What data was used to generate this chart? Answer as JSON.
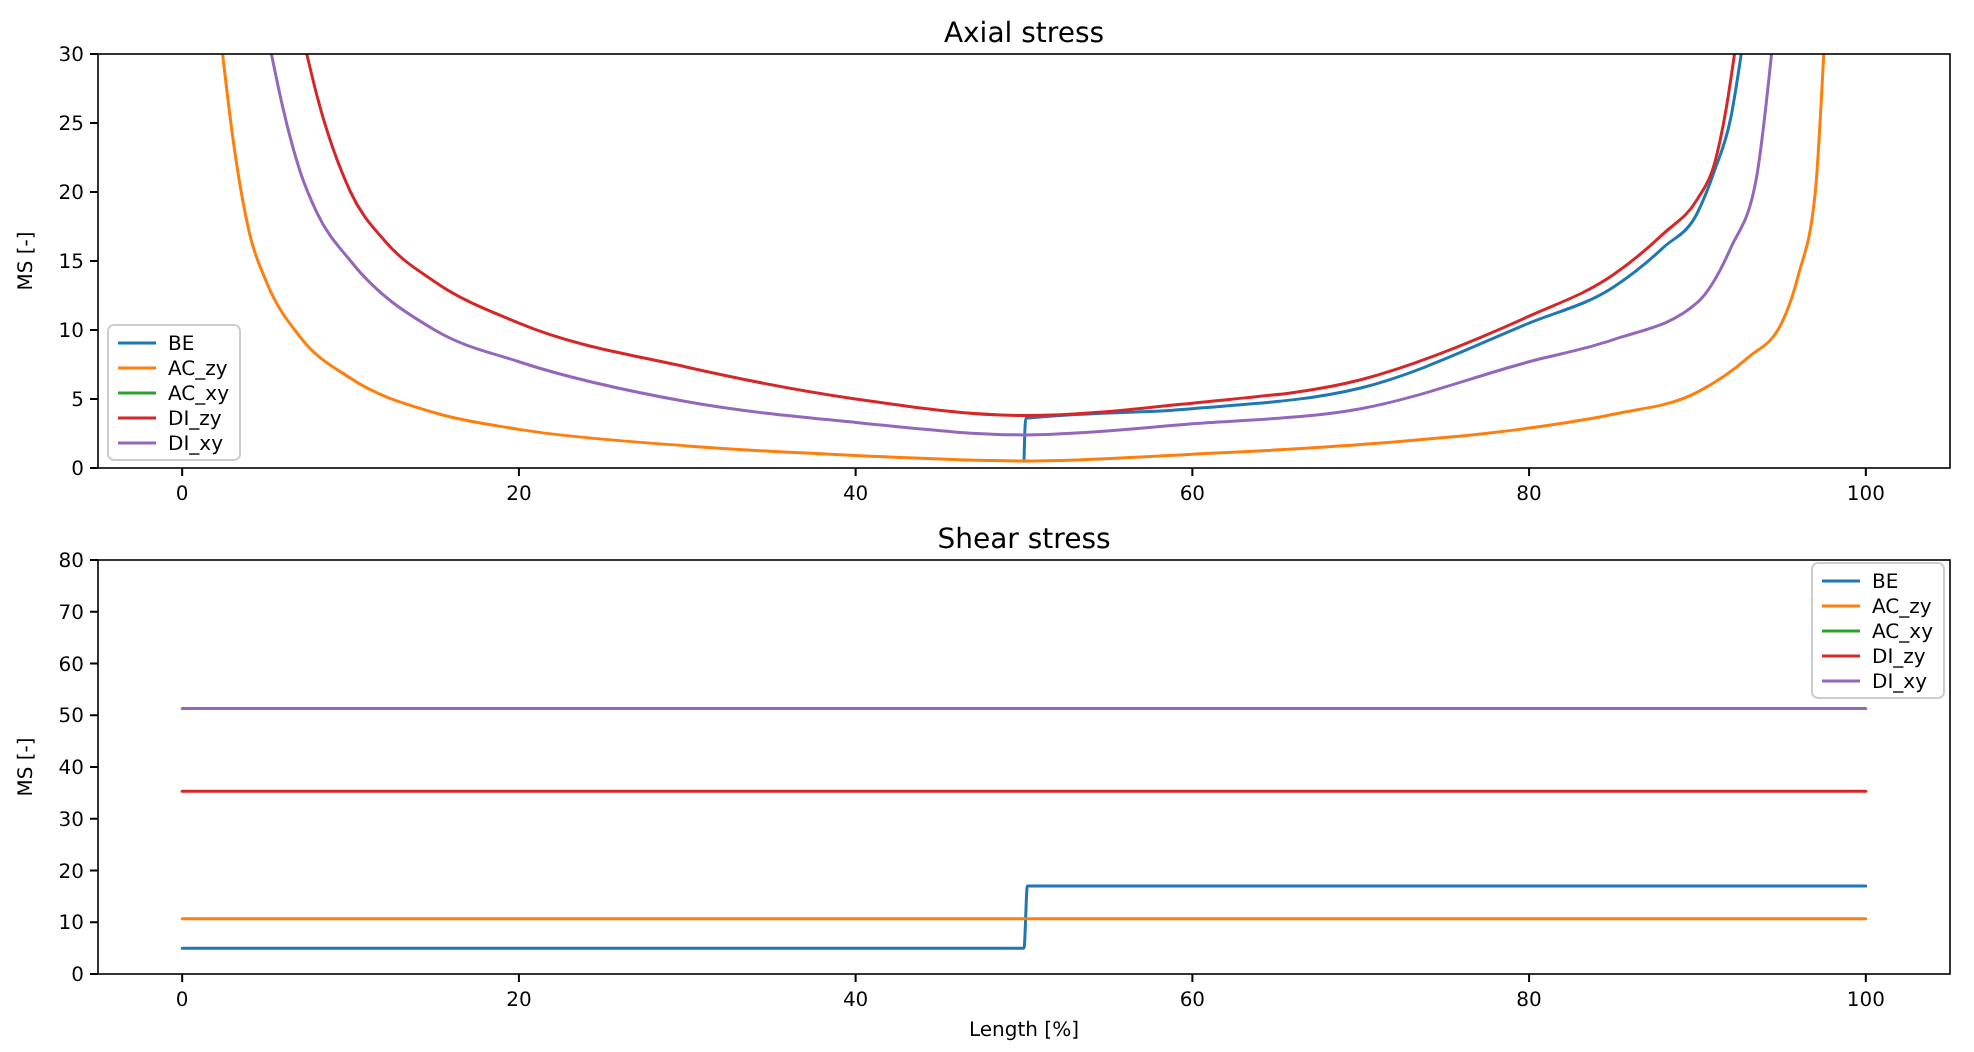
{
  "chart_data": [
    {
      "type": "line",
      "title": "Axial stress",
      "ylabel": "MS [-]",
      "xlim": [
        -5,
        105
      ],
      "ylim": [
        0,
        30
      ],
      "xticks": [
        0,
        20,
        40,
        60,
        80,
        100
      ],
      "yticks": [
        0,
        5,
        10,
        15,
        20,
        25,
        30
      ],
      "legend": "bottom left",
      "series": [
        {
          "name": "BE",
          "color": "#1f77b4",
          "x": [
            50,
            50.1,
            60,
            70,
            80,
            85,
            88,
            90,
            91,
            92,
            92.6
          ],
          "values": [
            0.5,
            3.6,
            4.3,
            5.8,
            10.5,
            13.1,
            16,
            18.5,
            21.5,
            25.5,
            30
          ]
        },
        {
          "name": "AC_zy",
          "color": "#ff7f0e",
          "x": [
            2.4,
            3,
            4,
            5,
            7,
            10,
            15,
            20,
            30,
            40,
            50,
            60,
            70,
            80,
            85,
            90,
            93,
            95,
            96,
            97,
            97.5
          ],
          "values": [
            30,
            24,
            17,
            13.5,
            9.5,
            6.5,
            4,
            2.8,
            1.6,
            0.9,
            0.5,
            1,
            1.7,
            2.9,
            3.9,
            5.5,
            8,
            10.5,
            14,
            20,
            30
          ]
        },
        {
          "name": "AC_xy",
          "color": "#2ca02c"
        },
        {
          "name": "DI_zy",
          "color": "#d62728",
          "x": [
            7.4,
            8,
            10,
            12,
            15,
            20,
            30,
            40,
            50,
            60,
            70,
            80,
            85,
            88,
            90,
            91,
            91.7,
            92.2
          ],
          "values": [
            30,
            27,
            20,
            16.5,
            13.5,
            10.5,
            7.3,
            5,
            3.8,
            4.7,
            6.4,
            11,
            14,
            17,
            19.5,
            22,
            26,
            30
          ]
        },
        {
          "name": "DI_xy",
          "color": "#9467bd",
          "x": [
            5.3,
            6,
            7,
            8,
            10,
            15,
            20,
            30,
            40,
            50,
            60,
            70,
            80,
            85,
            90,
            92,
            93.5,
            94.4
          ],
          "values": [
            30,
            26,
            21.5,
            18.5,
            15,
            10,
            7.7,
            4.8,
            3.3,
            2.4,
            3.2,
            4.3,
            7.7,
            9.3,
            12,
            16,
            21,
            30
          ]
        }
      ]
    },
    {
      "type": "line",
      "title": "Shear stress",
      "xlabel": "Length [%]",
      "ylabel": "MS [-]",
      "xlim": [
        -5,
        105
      ],
      "ylim": [
        0,
        80
      ],
      "xticks": [
        0,
        20,
        40,
        60,
        80,
        100
      ],
      "yticks": [
        0,
        10,
        20,
        30,
        40,
        50,
        60,
        70,
        80
      ],
      "legend": "top right",
      "series": [
        {
          "name": "BE",
          "color": "#1f77b4",
          "x": [
            0,
            50,
            50.2,
            100
          ],
          "values": [
            5,
            5,
            17,
            17
          ]
        },
        {
          "name": "AC_zy",
          "color": "#ff7f0e",
          "x": [
            0,
            100
          ],
          "values": [
            10.7,
            10.7
          ]
        },
        {
          "name": "AC_xy",
          "color": "#2ca02c"
        },
        {
          "name": "DI_zy",
          "color": "#d62728",
          "x": [
            0,
            100
          ],
          "values": [
            35.3,
            35.3
          ]
        },
        {
          "name": "DI_xy",
          "color": "#9467bd",
          "x": [
            0,
            100
          ],
          "values": [
            51.3,
            51.3
          ]
        }
      ]
    }
  ]
}
